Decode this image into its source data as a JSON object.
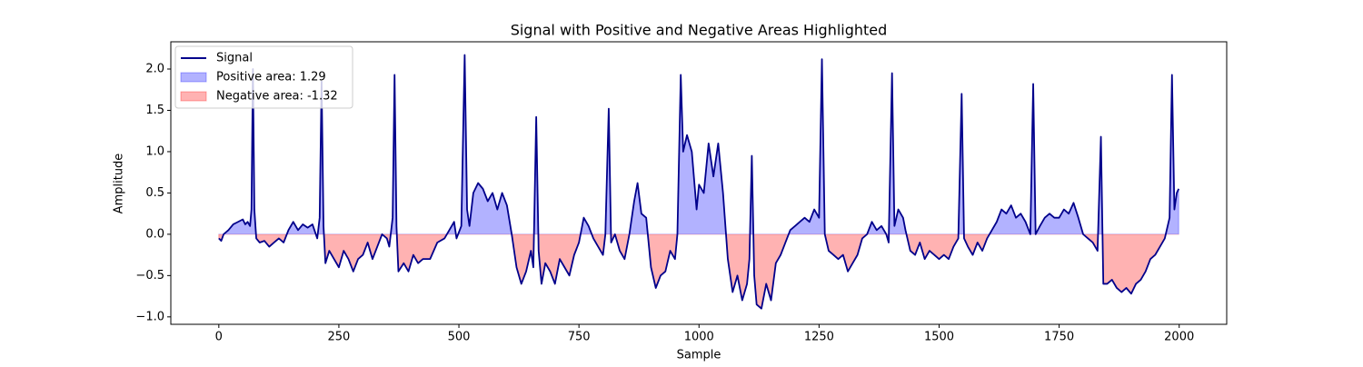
{
  "chart_data": {
    "type": "line",
    "title": "Signal with Positive and Negative Areas Highlighted",
    "xlabel": "Sample",
    "ylabel": "Amplitude",
    "x": [
      0,
      5,
      10,
      20,
      30,
      40,
      50,
      55,
      60,
      65,
      68,
      71,
      74,
      78,
      85,
      95,
      105,
      115,
      125,
      135,
      145,
      155,
      165,
      175,
      185,
      195,
      205,
      210,
      214,
      218,
      222,
      230,
      240,
      250,
      260,
      270,
      280,
      290,
      300,
      310,
      320,
      330,
      340,
      350,
      355,
      362,
      366,
      370,
      374,
      385,
      395,
      405,
      415,
      425,
      440,
      455,
      470,
      480,
      490,
      495,
      505,
      512,
      517,
      522,
      530,
      540,
      550,
      560,
      570,
      580,
      590,
      600,
      610,
      620,
      630,
      640,
      650,
      655,
      661,
      666,
      672,
      680,
      690,
      700,
      710,
      720,
      730,
      740,
      750,
      760,
      770,
      780,
      790,
      800,
      805,
      812,
      817,
      825,
      835,
      845,
      855,
      865,
      872,
      880,
      890,
      900,
      910,
      920,
      930,
      940,
      950,
      955,
      962,
      967,
      975,
      985,
      995,
      1000,
      1010,
      1020,
      1030,
      1040,
      1050,
      1060,
      1070,
      1080,
      1090,
      1100,
      1105,
      1110,
      1115,
      1120,
      1130,
      1140,
      1150,
      1160,
      1170,
      1180,
      1190,
      1200,
      1210,
      1220,
      1230,
      1240,
      1250,
      1256,
      1262,
      1270,
      1280,
      1290,
      1300,
      1310,
      1320,
      1330,
      1340,
      1350,
      1360,
      1370,
      1380,
      1390,
      1395,
      1402,
      1407,
      1415,
      1425,
      1430,
      1440,
      1450,
      1460,
      1470,
      1480,
      1490,
      1500,
      1510,
      1520,
      1530,
      1540,
      1547,
      1552,
      1560,
      1570,
      1580,
      1590,
      1600,
      1610,
      1620,
      1630,
      1640,
      1650,
      1660,
      1670,
      1680,
      1690,
      1696,
      1701,
      1710,
      1720,
      1730,
      1740,
      1750,
      1760,
      1770,
      1780,
      1790,
      1800,
      1810,
      1820,
      1830,
      1837,
      1842,
      1850,
      1860,
      1870,
      1880,
      1890,
      1900,
      1910,
      1920,
      1930,
      1940,
      1950,
      1960,
      1970,
      1980,
      1985,
      1990,
      1995,
      1999
    ],
    "series": [
      {
        "name": "Signal",
        "color": "#00008b",
        "values": [
          -0.05,
          -0.08,
          0,
          0.05,
          0.12,
          0.15,
          0.18,
          0.12,
          0.15,
          0.1,
          0.3,
          2.0,
          0.3,
          -0.05,
          -0.1,
          -0.08,
          -0.15,
          -0.1,
          -0.05,
          -0.1,
          0.05,
          0.15,
          0.05,
          0.12,
          0.08,
          0.12,
          -0.05,
          0.2,
          1.85,
          0.1,
          -0.35,
          -0.2,
          -0.3,
          -0.4,
          -0.2,
          -0.3,
          -0.45,
          -0.3,
          -0.25,
          -0.1,
          -0.3,
          -0.15,
          0.0,
          -0.05,
          -0.15,
          0.2,
          1.93,
          0.1,
          -0.45,
          -0.35,
          -0.45,
          -0.25,
          -0.35,
          -0.3,
          -0.3,
          -0.1,
          -0.05,
          0.05,
          0.15,
          -0.05,
          0.1,
          2.17,
          0.3,
          0.1,
          0.5,
          0.62,
          0.55,
          0.4,
          0.5,
          0.3,
          0.5,
          0.35,
          0.0,
          -0.4,
          -0.6,
          -0.45,
          -0.2,
          -0.4,
          1.42,
          -0.2,
          -0.6,
          -0.35,
          -0.45,
          -0.6,
          -0.3,
          -0.4,
          -0.5,
          -0.25,
          -0.1,
          0.2,
          0.1,
          -0.05,
          -0.15,
          -0.25,
          0.0,
          1.52,
          -0.1,
          0.0,
          -0.2,
          -0.3,
          0.0,
          0.4,
          0.62,
          0.25,
          0.2,
          -0.4,
          -0.65,
          -0.5,
          -0.45,
          -0.2,
          -0.3,
          0.0,
          1.93,
          1.0,
          1.2,
          1.0,
          0.3,
          0.6,
          0.5,
          1.1,
          0.7,
          1.1,
          0.5,
          -0.3,
          -0.7,
          -0.5,
          -0.8,
          -0.6,
          -0.3,
          0.95,
          -0.5,
          -0.85,
          -0.9,
          -0.6,
          -0.8,
          -0.35,
          -0.25,
          -0.1,
          0.05,
          0.1,
          0.15,
          0.2,
          0.15,
          0.3,
          0.2,
          2.12,
          0.0,
          -0.2,
          -0.25,
          -0.3,
          -0.25,
          -0.45,
          -0.35,
          -0.25,
          -0.05,
          0.0,
          0.15,
          0.05,
          0.1,
          0.0,
          -0.1,
          1.95,
          0.1,
          0.3,
          0.2,
          0.05,
          -0.2,
          -0.25,
          -0.1,
          -0.3,
          -0.2,
          -0.25,
          -0.3,
          -0.25,
          -0.3,
          -0.15,
          -0.05,
          1.7,
          -0.05,
          -0.15,
          -0.25,
          -0.1,
          -0.2,
          -0.05,
          0.05,
          0.15,
          0.3,
          0.25,
          0.35,
          0.2,
          0.25,
          0.15,
          0.0,
          1.82,
          0.0,
          0.1,
          0.2,
          0.25,
          0.2,
          0.2,
          0.3,
          0.25,
          0.38,
          0.2,
          0.0,
          -0.05,
          -0.1,
          -0.2,
          1.18,
          -0.6,
          -0.6,
          -0.55,
          -0.65,
          -0.7,
          -0.65,
          -0.72,
          -0.6,
          -0.55,
          -0.45,
          -0.3,
          -0.25,
          -0.15,
          -0.05,
          0.2,
          1.93,
          0.3,
          0.5,
          0.55
        ]
      }
    ],
    "fills": [
      {
        "name": "Positive area: 1.29",
        "color": "#0000ff",
        "side": "positive"
      },
      {
        "name": "Negative area: -1.32",
        "color": "#ff0000",
        "side": "negative"
      }
    ],
    "fill_alpha": 0.3,
    "xlim": [
      -99.95,
      2098.95
    ],
    "xticks": [
      0,
      250,
      500,
      750,
      1000,
      1250,
      1500,
      1750,
      2000
    ],
    "ylim": [
      -1.09,
      2.33
    ],
    "yticks": [
      {
        "value": -1,
        "label": "−1.0"
      },
      {
        "value": -0.5,
        "label": "−0.5"
      },
      {
        "value": 0,
        "label": "0.0"
      },
      0.5,
      {
        "value": 1,
        "label": "1.0"
      },
      1.5,
      {
        "value": 2,
        "label": "2.0"
      }
    ],
    "legend": "upper left"
  }
}
